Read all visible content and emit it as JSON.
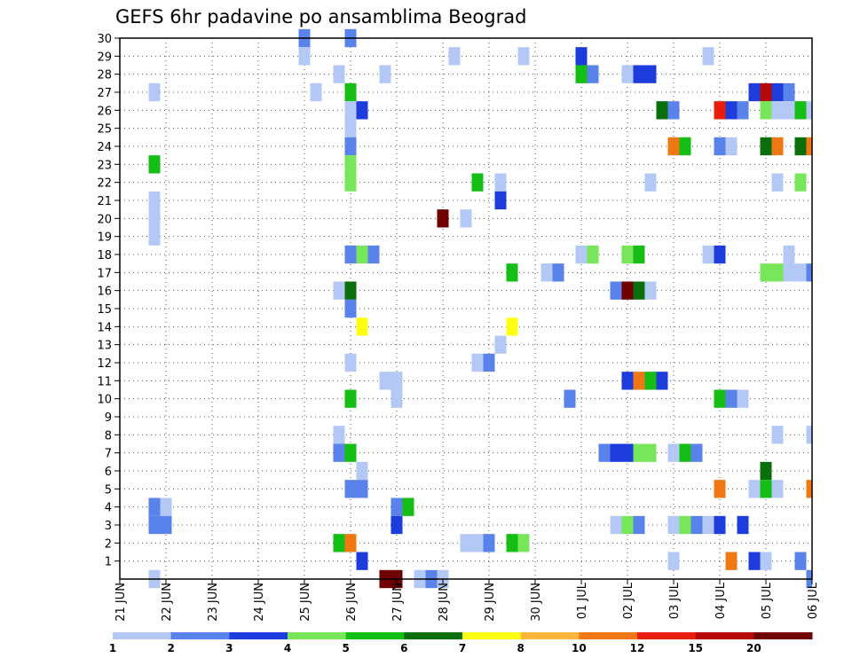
{
  "chart_data": {
    "type": "heatmap",
    "title": "GEFS 6hr padavine po ansamblima Beograd",
    "xlabel": "",
    "ylabel": "",
    "x_ticks": [
      "21 JUN",
      "22 JUN",
      "23 JUN",
      "24 JUN",
      "25 JUN",
      "26 JUN",
      "27 JUN",
      "28 JUN",
      "29 JUN",
      "30 JUN",
      "01 JUL",
      "02 JUL",
      "03 JUL",
      "04 JUL",
      "05 JUL",
      "06 JUL"
    ],
    "y_ticks": [
      "1",
      "2",
      "3",
      "4",
      "5",
      "6",
      "7",
      "8",
      "9",
      "10",
      "11",
      "12",
      "13",
      "14",
      "15",
      "16",
      "17",
      "18",
      "19",
      "20",
      "21",
      "22",
      "23",
      "24",
      "25",
      "26",
      "27",
      "28",
      "29",
      "30"
    ],
    "xlim_steps": [
      0,
      60
    ],
    "ylim": [
      0,
      30
    ],
    "grid": true,
    "colorbar": {
      "labels": [
        "1",
        "2",
        "3",
        "4",
        "5",
        "6",
        "7",
        "8",
        "10",
        "12",
        "15",
        "20"
      ],
      "colors": [
        "#b4c8f5",
        "#5a82eb",
        "#1e3cdc",
        "#78e65a",
        "#14be14",
        "#0a6e0a",
        "#ffff14",
        "#ffb43c",
        "#f07814",
        "#e61e0a",
        "#b40a0a",
        "#6e0000"
      ]
    },
    "cells": [
      [
        16,
        30,
        2
      ],
      [
        20,
        30,
        2
      ],
      [
        16,
        29,
        1
      ],
      [
        29,
        29,
        1
      ],
      [
        35,
        29,
        1
      ],
      [
        40,
        29,
        3
      ],
      [
        51,
        29,
        1
      ],
      [
        19,
        28,
        1
      ],
      [
        23,
        28,
        1
      ],
      [
        40,
        28,
        5
      ],
      [
        41,
        28,
        2
      ],
      [
        44,
        28,
        1
      ],
      [
        45,
        28,
        3
      ],
      [
        46,
        28,
        3
      ],
      [
        3,
        27,
        1
      ],
      [
        17,
        27,
        1
      ],
      [
        20,
        27,
        5
      ],
      [
        55,
        27,
        3
      ],
      [
        56,
        27,
        11
      ],
      [
        57,
        27,
        3
      ],
      [
        58,
        27,
        2
      ],
      [
        20,
        26,
        1
      ],
      [
        21,
        26,
        3
      ],
      [
        47,
        26,
        6
      ],
      [
        48,
        26,
        2
      ],
      [
        52,
        26,
        10
      ],
      [
        53,
        26,
        3
      ],
      [
        54,
        26,
        2
      ],
      [
        56,
        26,
        4
      ],
      [
        57,
        26,
        1
      ],
      [
        58,
        26,
        1
      ],
      [
        59,
        26,
        5
      ],
      [
        60,
        26,
        1
      ],
      [
        20,
        25,
        1
      ],
      [
        20,
        24,
        2
      ],
      [
        48,
        24,
        9
      ],
      [
        49,
        24,
        5
      ],
      [
        52,
        24,
        2
      ],
      [
        53,
        24,
        1
      ],
      [
        56,
        24,
        6
      ],
      [
        57,
        24,
        9
      ],
      [
        59,
        24,
        6
      ],
      [
        60,
        24,
        9
      ],
      [
        3,
        23,
        5
      ],
      [
        20,
        23,
        4
      ],
      [
        20,
        22,
        4
      ],
      [
        31,
        22,
        5
      ],
      [
        33,
        22,
        1
      ],
      [
        46,
        22,
        1
      ],
      [
        57,
        22,
        1
      ],
      [
        59,
        22,
        4
      ],
      [
        3,
        21,
        1
      ],
      [
        33,
        21,
        3
      ],
      [
        3,
        20,
        1
      ],
      [
        28,
        20,
        12
      ],
      [
        30,
        20,
        1
      ],
      [
        3,
        19,
        1
      ],
      [
        20,
        18,
        2
      ],
      [
        21,
        18,
        4
      ],
      [
        22,
        18,
        2
      ],
      [
        40,
        18,
        1
      ],
      [
        41,
        18,
        4
      ],
      [
        44,
        18,
        4
      ],
      [
        45,
        18,
        5
      ],
      [
        51,
        18,
        1
      ],
      [
        52,
        18,
        3
      ],
      [
        58,
        18,
        1
      ],
      [
        34,
        17,
        5
      ],
      [
        37,
        17,
        1
      ],
      [
        38,
        17,
        2
      ],
      [
        56,
        17,
        4
      ],
      [
        57,
        17,
        4
      ],
      [
        58,
        17,
        1
      ],
      [
        59,
        17,
        1
      ],
      [
        60,
        17,
        2
      ],
      [
        19,
        16,
        1
      ],
      [
        20,
        16,
        6
      ],
      [
        43,
        16,
        2
      ],
      [
        44,
        16,
        12
      ],
      [
        45,
        16,
        6
      ],
      [
        46,
        16,
        1
      ],
      [
        20,
        15,
        2
      ],
      [
        21,
        14,
        7
      ],
      [
        34,
        14,
        7
      ],
      [
        33,
        13,
        1
      ],
      [
        20,
        12,
        1
      ],
      [
        31,
        12,
        1
      ],
      [
        32,
        12,
        2
      ],
      [
        23,
        11,
        1
      ],
      [
        24,
        11,
        1
      ],
      [
        44,
        11,
        3
      ],
      [
        45,
        11,
        9
      ],
      [
        46,
        11,
        5
      ],
      [
        47,
        11,
        3
      ],
      [
        20,
        10,
        5
      ],
      [
        24,
        10,
        1
      ],
      [
        39,
        10,
        2
      ],
      [
        52,
        10,
        5
      ],
      [
        53,
        10,
        2
      ],
      [
        54,
        10,
        1
      ],
      [
        19,
        8,
        1
      ],
      [
        57,
        8,
        1
      ],
      [
        60,
        8,
        1
      ],
      [
        19,
        7,
        2
      ],
      [
        20,
        7,
        5
      ],
      [
        42,
        7,
        2
      ],
      [
        43,
        7,
        3
      ],
      [
        44,
        7,
        3
      ],
      [
        45,
        7,
        4
      ],
      [
        46,
        7,
        4
      ],
      [
        48,
        7,
        1
      ],
      [
        49,
        7,
        5
      ],
      [
        50,
        7,
        2
      ],
      [
        21,
        6,
        1
      ],
      [
        56,
        6,
        6
      ],
      [
        20,
        5,
        2
      ],
      [
        21,
        5,
        2
      ],
      [
        52,
        5,
        9
      ],
      [
        55,
        5,
        1
      ],
      [
        56,
        5,
        5
      ],
      [
        57,
        5,
        1
      ],
      [
        60,
        5,
        9
      ],
      [
        3,
        4,
        2
      ],
      [
        4,
        4,
        1
      ],
      [
        24,
        4,
        2
      ],
      [
        25,
        4,
        5
      ],
      [
        3,
        3,
        2
      ],
      [
        4,
        3,
        2
      ],
      [
        24,
        3,
        3
      ],
      [
        43,
        3,
        1
      ],
      [
        44,
        3,
        4
      ],
      [
        45,
        3,
        2
      ],
      [
        48,
        3,
        1
      ],
      [
        49,
        3,
        4
      ],
      [
        50,
        3,
        2
      ],
      [
        51,
        3,
        1
      ],
      [
        52,
        3,
        3
      ],
      [
        54,
        3,
        3
      ],
      [
        19,
        2,
        5
      ],
      [
        20,
        2,
        9
      ],
      [
        30,
        2,
        1
      ],
      [
        31,
        2,
        1
      ],
      [
        32,
        2,
        2
      ],
      [
        34,
        2,
        5
      ],
      [
        35,
        2,
        4
      ],
      [
        21,
        1,
        3
      ],
      [
        48,
        1,
        1
      ],
      [
        53,
        1,
        9
      ],
      [
        55,
        1,
        3
      ],
      [
        56,
        1,
        1
      ],
      [
        59,
        1,
        2
      ],
      [
        3,
        0,
        1
      ],
      [
        23,
        0,
        12
      ],
      [
        24,
        0,
        12
      ],
      [
        26,
        0,
        1
      ],
      [
        27,
        0,
        2
      ],
      [
        28,
        0,
        1
      ],
      [
        60,
        0,
        2
      ]
    ]
  }
}
